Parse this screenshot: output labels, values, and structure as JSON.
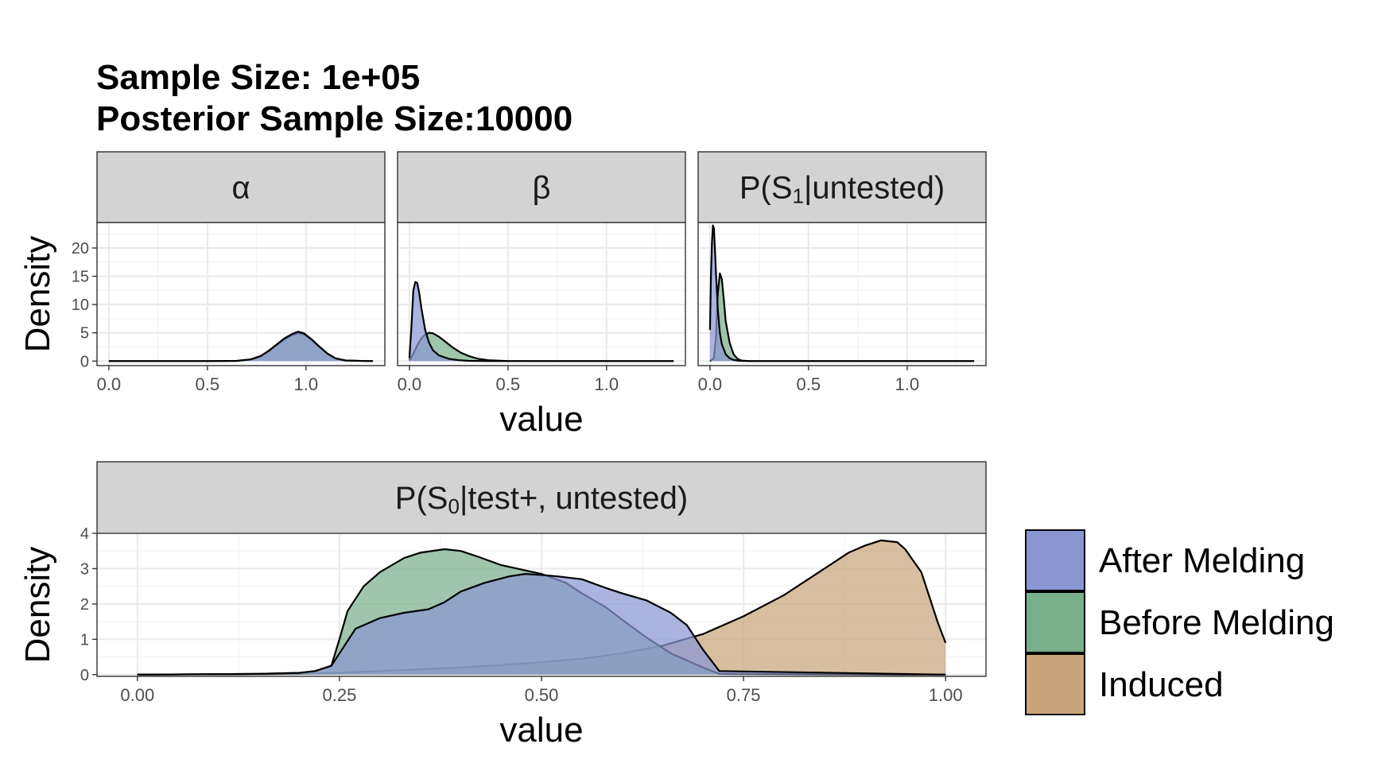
{
  "title_line1": "Sample Size: 1e+05",
  "title_line2": "Posterior Sample Size:10000",
  "colors": {
    "after_melding": "#8b97d3",
    "before_melding": "#7aaf8c",
    "induced": "#c9a57c",
    "strip": "#d3d3d3",
    "grid_major": "#ebebeb",
    "grid_minor": "#f5f5f5"
  },
  "legend": [
    {
      "label": "After Melding",
      "color": "#8b97d3"
    },
    {
      "label": "Before Melding",
      "color": "#7aaf8c"
    },
    {
      "label": "Induced",
      "color": "#c9a57c"
    }
  ],
  "chart_data": [
    {
      "type": "area",
      "panel": "top",
      "ylabel": "Density",
      "xlabel": "value",
      "ylim": [
        -0.8,
        24.5
      ],
      "y_ticks": [
        0,
        5,
        10,
        15,
        20
      ],
      "x_ticks": [
        0.0,
        0.5,
        1.0
      ],
      "x_tick_labels": [
        "0.0",
        "0.5",
        "1.0"
      ],
      "grid": true,
      "facets": [
        {
          "strip": "α",
          "xlim": [
            -0.06,
            1.4
          ],
          "series": [
            {
              "name": "After Melding",
              "x": [
                0.0,
                0.5,
                0.65,
                0.72,
                0.77,
                0.81,
                0.85,
                0.89,
                0.93,
                0.96,
                0.99,
                1.03,
                1.07,
                1.11,
                1.15,
                1.2,
                1.3,
                1.34
              ],
              "y": [
                0,
                0,
                0.05,
                0.3,
                0.9,
                1.8,
                2.9,
                4.0,
                4.8,
                5.2,
                4.9,
                3.8,
                2.5,
                1.3,
                0.5,
                0.12,
                0.01,
                0
              ]
            },
            {
              "name": "Before Melding",
              "x": [
                0.0,
                0.5,
                0.65,
                0.72,
                0.77,
                0.81,
                0.85,
                0.89,
                0.93,
                0.96,
                0.99,
                1.03,
                1.07,
                1.11,
                1.15,
                1.2,
                1.3,
                1.34
              ],
              "y": [
                0,
                0,
                0.05,
                0.3,
                0.85,
                1.7,
                2.8,
                3.8,
                4.6,
                4.95,
                4.7,
                3.7,
                2.4,
                1.25,
                0.45,
                0.1,
                0.01,
                0
              ]
            }
          ]
        },
        {
          "strip": "β",
          "xlim": [
            -0.06,
            1.4
          ],
          "series": [
            {
              "name": "After Melding",
              "x": [
                0.0,
                0.01,
                0.02,
                0.03,
                0.04,
                0.05,
                0.06,
                0.08,
                0.1,
                0.12,
                0.15,
                0.2,
                0.25,
                0.3,
                0.4,
                0.6,
                1.34
              ],
              "y": [
                0.5,
                6,
                12.5,
                14,
                13.8,
                12,
                9.5,
                5.5,
                3.2,
                1.9,
                1.0,
                0.4,
                0.15,
                0.05,
                0,
                0,
                0
              ]
            },
            {
              "name": "Before Melding",
              "x": [
                0.0,
                0.02,
                0.04,
                0.06,
                0.08,
                0.1,
                0.12,
                0.15,
                0.18,
                0.22,
                0.26,
                0.3,
                0.35,
                0.4,
                0.5,
                0.7,
                1.34
              ],
              "y": [
                0.1,
                1.3,
                2.8,
                4.0,
                4.7,
                5.0,
                4.9,
                4.3,
                3.5,
                2.4,
                1.5,
                0.9,
                0.4,
                0.15,
                0.02,
                0,
                0
              ]
            }
          ]
        },
        {
          "strip": "P(S1|untested)",
          "xlim": [
            -0.06,
            1.4
          ],
          "series": [
            {
              "name": "After Melding",
              "x": [
                0.0,
                0.005,
                0.01,
                0.015,
                0.02,
                0.025,
                0.03,
                0.04,
                0.05,
                0.06,
                0.08,
                0.1,
                0.12,
                0.15,
                0.2,
                0.3,
                1.34
              ],
              "y": [
                5.5,
                15,
                21,
                24,
                23.5,
                20,
                16,
                9,
                5,
                3,
                1.2,
                0.5,
                0.2,
                0.05,
                0,
                0,
                0
              ]
            },
            {
              "name": "Before Melding",
              "x": [
                0.0,
                0.02,
                0.03,
                0.04,
                0.05,
                0.06,
                0.07,
                0.08,
                0.1,
                0.12,
                0.14,
                0.16,
                0.2,
                0.3,
                1.34
              ],
              "y": [
                0,
                0.5,
                4,
                12,
                15.5,
                14.5,
                11,
                7,
                3.2,
                1.2,
                0.4,
                0.1,
                0,
                0,
                0
              ]
            }
          ]
        }
      ]
    },
    {
      "type": "area",
      "panel": "bottom",
      "ylabel": "Density",
      "xlabel": "value",
      "ylim": [
        -0.05,
        4.0
      ],
      "y_ticks": [
        0,
        1,
        2,
        3,
        4
      ],
      "x_ticks": [
        0.0,
        0.25,
        0.5,
        0.75,
        1.0
      ],
      "x_tick_labels": [
        "0.00",
        "0.25",
        "0.50",
        "0.75",
        "1.00"
      ],
      "grid": true,
      "facets": [
        {
          "strip": "P(S0|test+, untested)",
          "xlim": [
            -0.05,
            1.05
          ],
          "series": [
            {
              "name": "After Melding",
              "x": [
                0.0,
                0.15,
                0.2,
                0.22,
                0.24,
                0.25,
                0.27,
                0.3,
                0.33,
                0.36,
                0.38,
                0.4,
                0.43,
                0.46,
                0.48,
                0.5,
                0.52,
                0.55,
                0.58,
                0.6,
                0.63,
                0.66,
                0.68,
                0.7,
                0.72,
                1.0
              ],
              "y": [
                0,
                0.02,
                0.05,
                0.1,
                0.25,
                0.6,
                1.3,
                1.6,
                1.75,
                1.85,
                2.05,
                2.35,
                2.6,
                2.78,
                2.85,
                2.82,
                2.78,
                2.7,
                2.45,
                2.3,
                2.1,
                1.75,
                1.4,
                0.7,
                0.1,
                0
              ]
            },
            {
              "name": "Before Melding",
              "x": [
                0.0,
                0.15,
                0.2,
                0.22,
                0.24,
                0.25,
                0.26,
                0.28,
                0.3,
                0.33,
                0.35,
                0.38,
                0.4,
                0.42,
                0.45,
                0.48,
                0.5,
                0.53,
                0.55,
                0.58,
                0.6,
                0.63,
                0.66,
                0.7,
                0.72,
                1.0
              ],
              "y": [
                0,
                0.02,
                0.05,
                0.1,
                0.25,
                1.0,
                1.8,
                2.5,
                2.9,
                3.3,
                3.45,
                3.55,
                3.5,
                3.35,
                3.1,
                2.95,
                2.85,
                2.6,
                2.3,
                1.9,
                1.55,
                1.05,
                0.6,
                0.2,
                0.02,
                0
              ]
            },
            {
              "name": "Induced",
              "x": [
                0.0,
                0.2,
                0.25,
                0.3,
                0.35,
                0.4,
                0.45,
                0.5,
                0.55,
                0.6,
                0.65,
                0.7,
                0.75,
                0.8,
                0.83,
                0.86,
                0.88,
                0.9,
                0.92,
                0.94,
                0.95,
                0.97,
                0.98,
                0.99,
                1.0
              ],
              "y": [
                0,
                0.02,
                0.05,
                0.1,
                0.15,
                0.2,
                0.27,
                0.35,
                0.45,
                0.6,
                0.82,
                1.15,
                1.65,
                2.25,
                2.7,
                3.15,
                3.45,
                3.65,
                3.8,
                3.75,
                3.55,
                2.9,
                2.2,
                1.5,
                0.9
              ]
            }
          ]
        }
      ]
    }
  ]
}
